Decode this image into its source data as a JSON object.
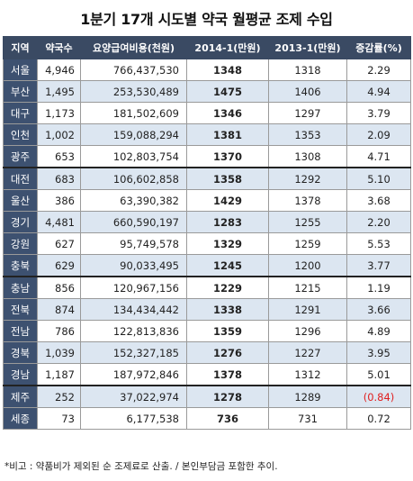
{
  "title": "1분기 17개 시도별 약국 월평균 조제 수입",
  "headers": [
    "지역",
    "약국수",
    "요양급여비용(천원)",
    "2014-1(만원)",
    "2013-1(만원)",
    "증감률(%)"
  ],
  "rows": [
    {
      "region": "서울",
      "pharmacies": "4,946",
      "cost": "766,437,530",
      "y2014": "1348",
      "y2013": "1318",
      "rate": "2.29"
    },
    {
      "region": "부산",
      "pharmacies": "1,495",
      "cost": "253,530,489",
      "y2014": "1475",
      "y2013": "1406",
      "rate": "4.94"
    },
    {
      "region": "대구",
      "pharmacies": "1,173",
      "cost": "181,502,609",
      "y2014": "1346",
      "y2013": "1297",
      "rate": "3.79"
    },
    {
      "region": "인천",
      "pharmacies": "1,002",
      "cost": "159,088,294",
      "y2014": "1381",
      "y2013": "1353",
      "rate": "2.09"
    },
    {
      "region": "광주",
      "pharmacies": "653",
      "cost": "102,803,754",
      "y2014": "1370",
      "y2013": "1308",
      "rate": "4.71"
    },
    {
      "region": "대전",
      "pharmacies": "683",
      "cost": "106,602,858",
      "y2014": "1358",
      "y2013": "1292",
      "rate": "5.10"
    },
    {
      "region": "울산",
      "pharmacies": "386",
      "cost": "63,390,382",
      "y2014": "1429",
      "y2013": "1378",
      "rate": "3.68"
    },
    {
      "region": "경기",
      "pharmacies": "4,481",
      "cost": "660,590,197",
      "y2014": "1283",
      "y2013": "1255",
      "rate": "2.20"
    },
    {
      "region": "강원",
      "pharmacies": "627",
      "cost": "95,749,578",
      "y2014": "1329",
      "y2013": "1259",
      "rate": "5.53"
    },
    {
      "region": "충북",
      "pharmacies": "629",
      "cost": "90,033,495",
      "y2014": "1245",
      "y2013": "1200",
      "rate": "3.77"
    },
    {
      "region": "충남",
      "pharmacies": "856",
      "cost": "120,967,156",
      "y2014": "1229",
      "y2013": "1215",
      "rate": "1.19"
    },
    {
      "region": "전북",
      "pharmacies": "874",
      "cost": "134,434,442",
      "y2014": "1338",
      "y2013": "1291",
      "rate": "3.66"
    },
    {
      "region": "전남",
      "pharmacies": "786",
      "cost": "122,813,836",
      "y2014": "1359",
      "y2013": "1296",
      "rate": "4.89"
    },
    {
      "region": "경북",
      "pharmacies": "1,039",
      "cost": "152,327,185",
      "y2014": "1276",
      "y2013": "1227",
      "rate": "3.95"
    },
    {
      "region": "경남",
      "pharmacies": "1,187",
      "cost": "187,972,846",
      "y2014": "1378",
      "y2013": "1312",
      "rate": "5.01"
    },
    {
      "region": "제주",
      "pharmacies": "252",
      "cost": "37,022,974",
      "y2014": "1278",
      "y2013": "1289",
      "rate": "(0.84)",
      "negative": true
    },
    {
      "region": "세종",
      "pharmacies": "73",
      "cost": "6,177,538",
      "y2014": "736",
      "y2013": "731",
      "rate": "0.72"
    }
  ],
  "footnote": "*비고 : 약품비가 제외된 순 조제료로 산출. / 본인부담금 포함한 추이."
}
